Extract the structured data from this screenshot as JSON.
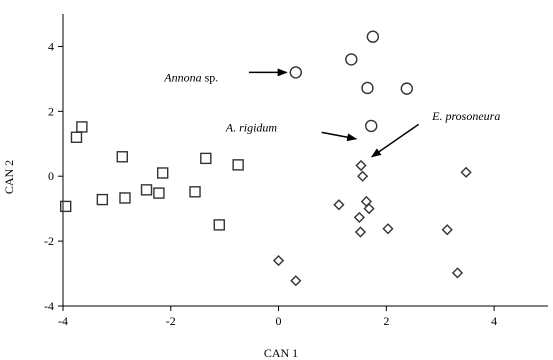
{
  "chart_data": {
    "type": "scatter",
    "title": "",
    "xlabel": "CAN 1",
    "ylabel": "CAN 2",
    "xlim": [
      -4,
      5
    ],
    "ylim": [
      -4,
      5
    ],
    "xticks": [
      -4,
      -2,
      0,
      2,
      4
    ],
    "yticks": [
      -4,
      -2,
      0,
      2,
      4
    ],
    "tick_labels_x": [
      "-4",
      "-2",
      "0",
      "2",
      "4"
    ],
    "tick_labels_y": [
      "-4",
      "-2",
      "0",
      "2",
      "4"
    ],
    "grid": false,
    "legend": "none",
    "series": [
      {
        "marker": "square",
        "points": [
          {
            "x": -3.95,
            "y": -0.93
          },
          {
            "x": -3.75,
            "y": 1.2
          },
          {
            "x": -3.65,
            "y": 1.52
          },
          {
            "x": -3.27,
            "y": -0.72
          },
          {
            "x": -2.9,
            "y": 0.6
          },
          {
            "x": -2.85,
            "y": -0.67
          },
          {
            "x": -2.45,
            "y": -0.42
          },
          {
            "x": -2.22,
            "y": -0.52
          },
          {
            "x": -2.15,
            "y": 0.1
          },
          {
            "x": -1.55,
            "y": -0.48
          },
          {
            "x": -1.35,
            "y": 0.55
          },
          {
            "x": -1.1,
            "y": -1.5
          },
          {
            "x": -0.75,
            "y": 0.35
          }
        ]
      },
      {
        "marker": "circle",
        "points": [
          {
            "x": 0.32,
            "y": 3.2
          },
          {
            "x": 1.35,
            "y": 3.6
          },
          {
            "x": 1.75,
            "y": 4.3
          },
          {
            "x": 1.65,
            "y": 2.72
          },
          {
            "x": 2.38,
            "y": 2.7
          },
          {
            "x": 1.72,
            "y": 1.55
          }
        ]
      },
      {
        "marker": "diamond",
        "points": [
          {
            "x": 0.0,
            "y": -2.6
          },
          {
            "x": 0.32,
            "y": -3.22
          },
          {
            "x": 1.12,
            "y": -0.88
          },
          {
            "x": 1.5,
            "y": -1.27
          },
          {
            "x": 1.53,
            "y": 0.33
          },
          {
            "x": 1.56,
            "y": 0.0
          },
          {
            "x": 1.52,
            "y": -1.72
          },
          {
            "x": 1.63,
            "y": -0.78
          },
          {
            "x": 1.68,
            "y": -1.0
          },
          {
            "x": 2.03,
            "y": -1.62
          },
          {
            "x": 3.13,
            "y": -1.65
          },
          {
            "x": 3.32,
            "y": -2.98
          },
          {
            "x": 3.48,
            "y": 0.12
          }
        ]
      }
    ],
    "annotations": [
      {
        "italic": "Annona",
        "plain": " sp.",
        "text_at": [
          -2.12,
          3.05
        ],
        "arrow_from": [
          -0.55,
          3.2
        ],
        "arrow_to": [
          0.15,
          3.2
        ]
      },
      {
        "italic": "A. rigidum",
        "plain": "",
        "text_at": [
          -0.98,
          1.5
        ],
        "arrow_from": [
          0.8,
          1.35
        ],
        "arrow_to": [
          1.44,
          1.15
        ]
      },
      {
        "italic": "E. prosoneura",
        "plain": "",
        "text_at": [
          2.85,
          1.85
        ],
        "arrow_from": [
          2.6,
          1.6
        ],
        "arrow_to": [
          1.73,
          0.6
        ]
      }
    ]
  }
}
